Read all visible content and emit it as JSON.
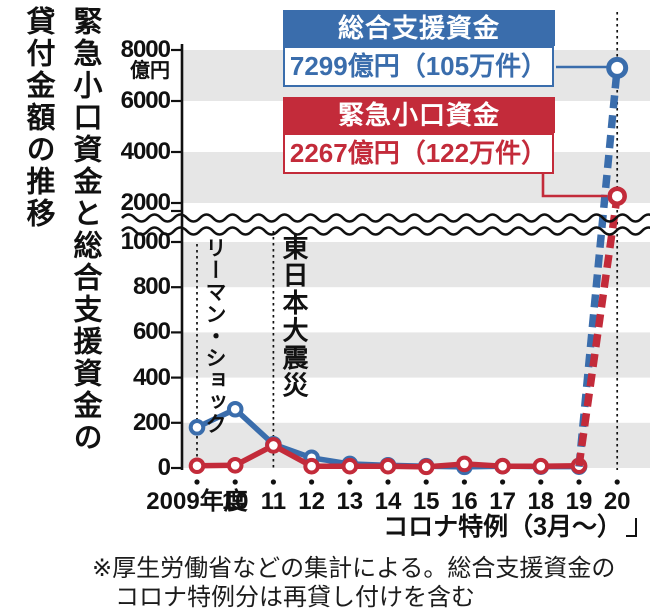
{
  "title": {
    "line1": "緊急小口資金と総合支援資金の",
    "line2": "貸付金額の推移"
  },
  "callouts": {
    "sougou": {
      "name": "総合支援資金",
      "value": "7299億円（105万件）"
    },
    "kinkyu": {
      "name": "緊急小口資金",
      "value": "2267億円（122万件）"
    }
  },
  "annotations": {
    "lehman": "リーマン・ショック",
    "earthquake": "東日本大震災",
    "corona": "コロナ特例（3月～）"
  },
  "note": {
    "line1": "※厚生労働省などの集計による。総合支援資金の",
    "line2": "コロナ特例分は再貸し付けを含む"
  },
  "colors": {
    "blue": "#3a6dac",
    "red": "#c32b3a",
    "stripe": "#e6e6e6",
    "ink": "#111111"
  },
  "chart_data": {
    "type": "line",
    "title": "緊急小口資金と総合支援資金の貸付金額の推移",
    "ylabel": "億円",
    "xlabel": "年度",
    "categories": [
      "2009年度",
      "10",
      "11",
      "12",
      "13",
      "14",
      "15",
      "16",
      "17",
      "18",
      "19",
      "20"
    ],
    "series": [
      {
        "name": "総合支援資金",
        "color_key": "blue",
        "values": [
          180,
          260,
          105,
          45,
          18,
          12,
          8,
          5,
          8,
          6,
          6,
          7299
        ]
      },
      {
        "name": "緊急小口資金",
        "color_key": "red",
        "values": [
          10,
          12,
          100,
          8,
          8,
          8,
          5,
          18,
          8,
          8,
          10,
          2267
        ]
      }
    ],
    "y_axis_break": {
      "upper_ticks": [
        8000,
        6000,
        4000,
        2000
      ],
      "lower_ticks": [
        1000,
        800,
        600,
        400,
        200,
        0
      ],
      "upper_range": [
        2000,
        8000
      ],
      "lower_range": [
        0,
        1000
      ]
    },
    "grid": "alternating horizontal bands",
    "legend_position": "callout boxes top right",
    "final_values": {
      "総合支援資金": {
        "amount_oku_yen": 7299,
        "cases_man_ken": 105
      },
      "緊急小口資金": {
        "amount_oku_yen": 2267,
        "cases_man_ken": 122
      }
    },
    "event_markers": [
      {
        "category": "2009年度",
        "label": "リーマン・ショック"
      },
      {
        "category": "11",
        "label": "東日本大震災"
      },
      {
        "category": "20",
        "label": "コロナ特例（3月～）"
      }
    ]
  }
}
